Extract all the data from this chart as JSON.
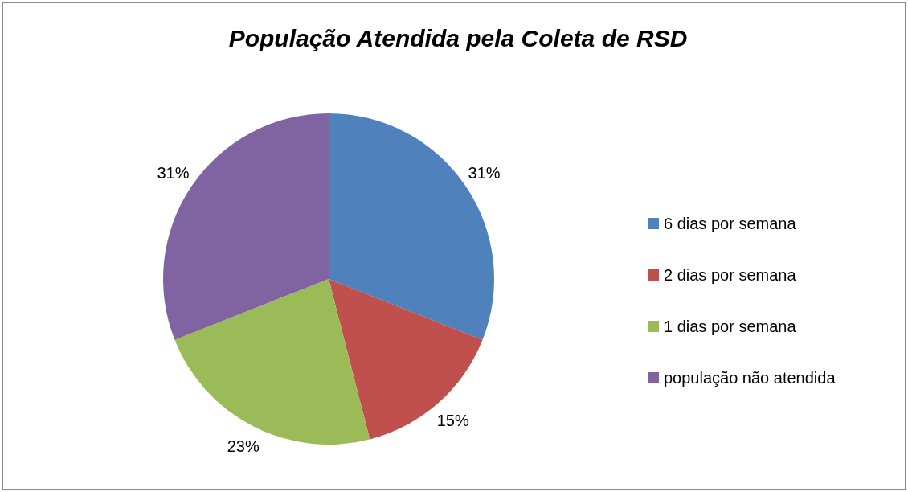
{
  "chart_data": {
    "type": "pie",
    "title": "População Atendida pela Coleta de RSD",
    "categories": [
      "6 dias por semana",
      "2 dias por semana",
      "1 dias por semana",
      "população não atendida"
    ],
    "values": [
      31,
      15,
      23,
      31
    ],
    "colors": [
      "#4f81bd",
      "#c0504d",
      "#9bbb59",
      "#8064a2"
    ],
    "value_labels": [
      "31%",
      "15%",
      "23%",
      "31%"
    ],
    "legend": "right"
  }
}
